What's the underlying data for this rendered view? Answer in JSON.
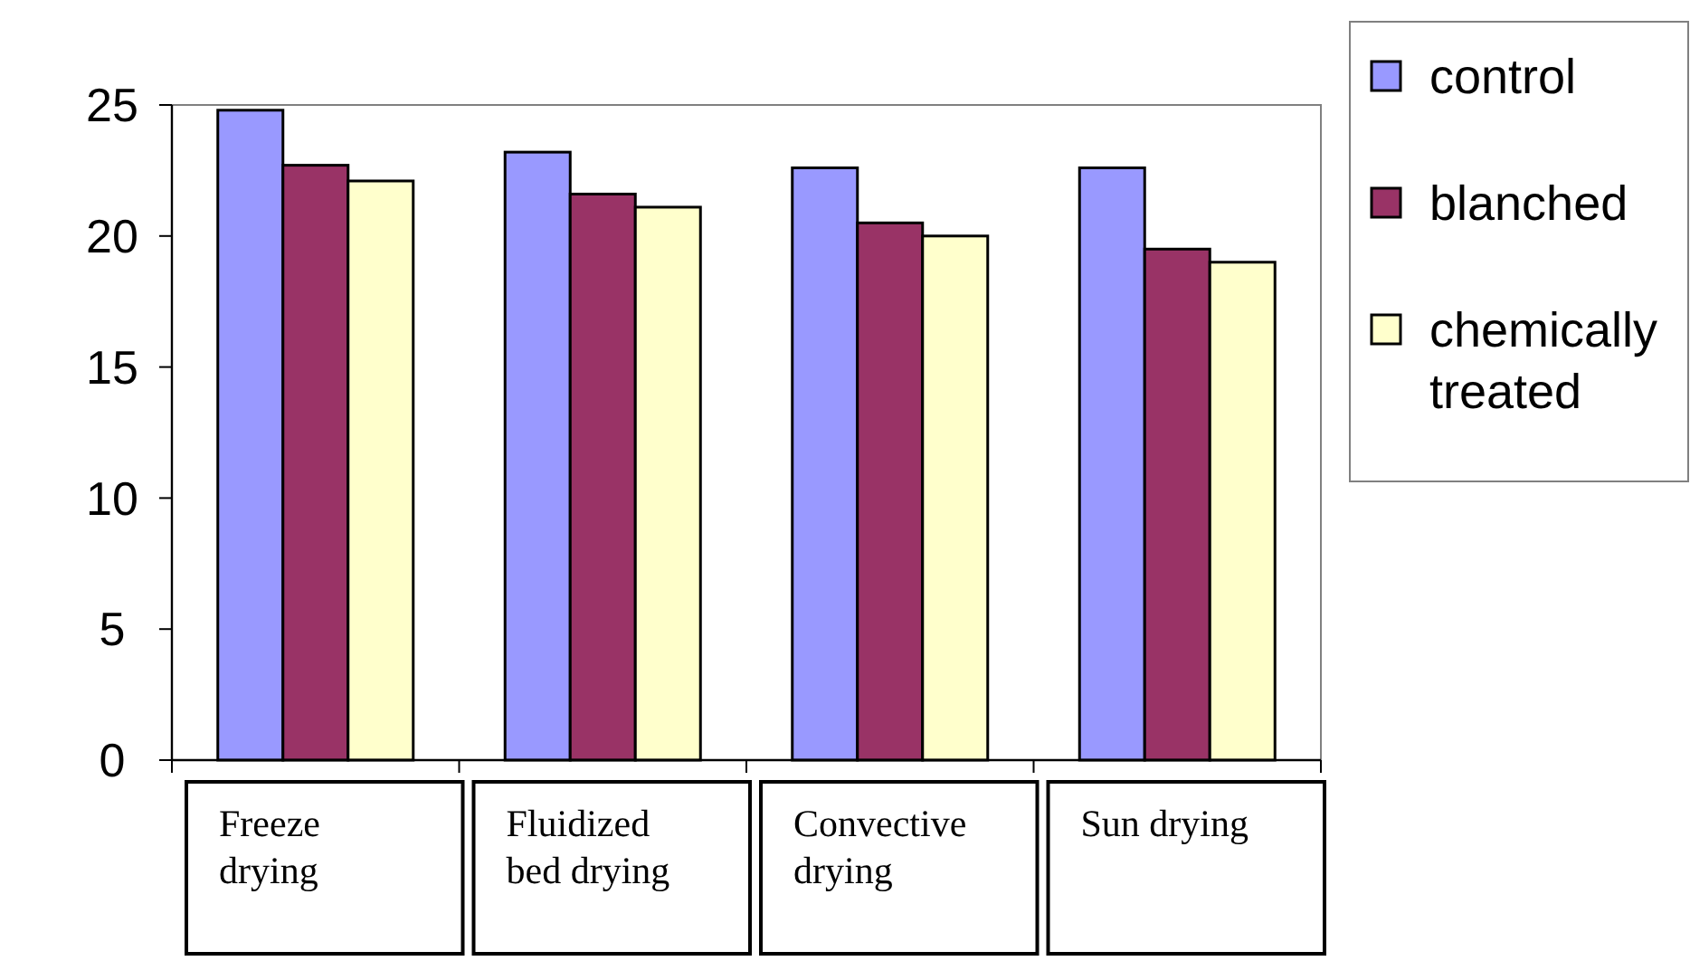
{
  "chart_data": {
    "type": "bar",
    "categories": [
      "Freeze drying",
      "Fluidized bed drying",
      "Convective drying",
      "Sun drying"
    ],
    "series": [
      {
        "name": "control",
        "color": "#9999ff",
        "values": [
          24.8,
          23.2,
          22.6,
          22.6
        ]
      },
      {
        "name": "blanched",
        "color": "#993366",
        "values": [
          22.7,
          21.6,
          20.5,
          19.5
        ]
      },
      {
        "name": "chemically treated",
        "color": "#ffffcc",
        "values": [
          22.1,
          21.1,
          20.0,
          19.0
        ]
      }
    ],
    "ylim": [
      0,
      25
    ],
    "yticks": [
      0,
      5,
      10,
      15,
      20,
      25
    ],
    "grid": false,
    "legend": "right"
  }
}
